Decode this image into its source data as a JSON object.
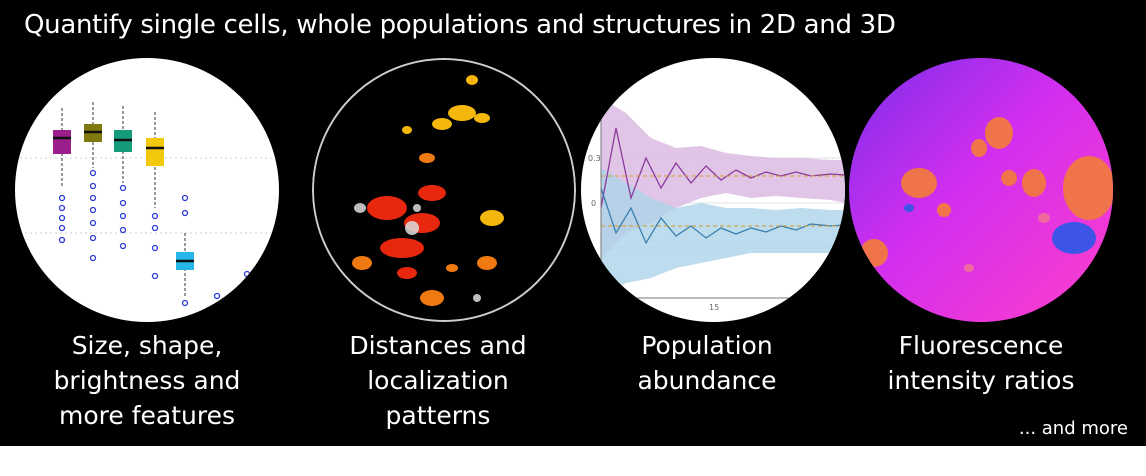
{
  "header": {
    "title": "Quantify single cells, whole populations and structures in 2D and 3D"
  },
  "panels": [
    {
      "caption": "Size, shape,\nbrightness and\nmore features",
      "icon": "boxplot-illustration"
    },
    {
      "caption": "Distances and\nlocalization\npatterns",
      "icon": "cell-clusters-illustration"
    },
    {
      "caption": "Population\nabundance",
      "icon": "line-bands-illustration"
    },
    {
      "caption": "Fluorescence\nintensity ratios",
      "icon": "fluorescence-illustration"
    }
  ],
  "footer": {
    "more": "... and more"
  },
  "illustration_labels": {
    "y_tick_1": "0.3",
    "y_tick_2": "0",
    "x_tick": "15"
  },
  "colors": {
    "background": "#000000",
    "text": "#ffffff"
  }
}
